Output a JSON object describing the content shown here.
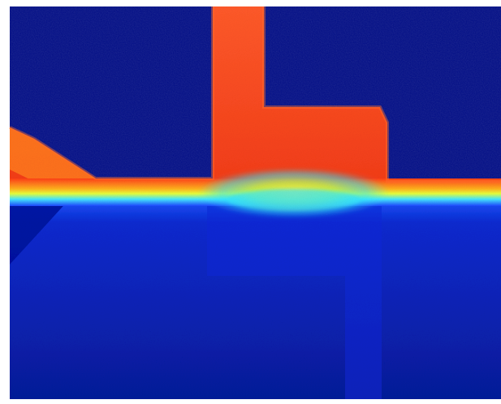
{
  "image": {
    "colormap": "jet",
    "colors": {
      "background_deep_blue": "#000c86",
      "lower_region_blue": "#0a1ec8",
      "hot_region_red": "#f0381a",
      "hot_edge_orange": "#ff7a1e",
      "transition_yellow": "#f4ff3a",
      "transition_cyan": "#35e6ff"
    }
  }
}
